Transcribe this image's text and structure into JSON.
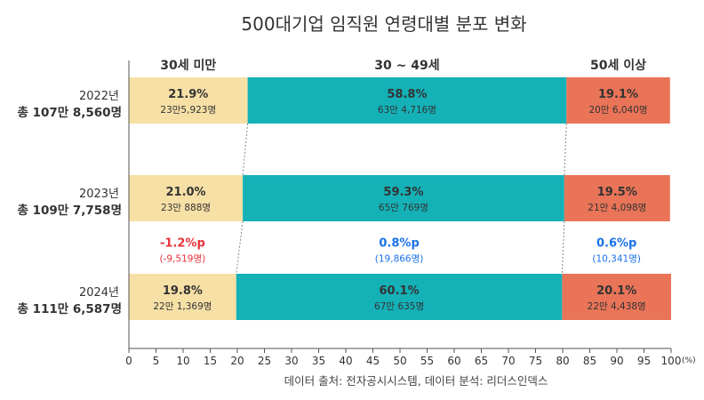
{
  "chart_data": {
    "type": "bar",
    "stacked": true,
    "orientation": "horizontal",
    "title": "500대기업 임직원 연령대별 분포 변화",
    "source": "데이터 출처: 전자공시시스템, 데이터 분석: 리더스인덱스",
    "x_unit": "(%)",
    "xlim": [
      0,
      100
    ],
    "x_ticks": [
      0,
      5,
      10,
      15,
      20,
      25,
      30,
      35,
      40,
      45,
      50,
      55,
      60,
      65,
      70,
      75,
      80,
      85,
      90,
      95,
      100
    ],
    "colors": {
      "under30": "#f7e0a6",
      "age30to49": "#14b1b7",
      "over50": "#e97458",
      "decrease": "#e8323c",
      "increase": "#1a73e8"
    },
    "series": [
      {
        "name": "30세 미만",
        "values": [
          21.9,
          21.0,
          19.8
        ],
        "counts": [
          "23만5,923명",
          "23만 888명",
          "22만 1,369명"
        ]
      },
      {
        "name": "30 ~ 49세",
        "values": [
          58.8,
          59.3,
          60.1
        ],
        "counts": [
          "63만 4,716명",
          "65만 769명",
          "67만 635명"
        ]
      },
      {
        "name": "50세 이상",
        "values": [
          19.1,
          19.5,
          20.1
        ],
        "counts": [
          "20만 6,040명",
          "21만 4,098명",
          "22만 4,438명"
        ]
      }
    ],
    "rows": [
      {
        "year": "2022년",
        "total": "총 107만 8,560명"
      },
      {
        "year": "2023년",
        "total": "총 109만 7,758명"
      },
      {
        "year": "2024년",
        "total": "총 111만 6,587명"
      }
    ],
    "changes": [
      {
        "pct": "-1.2%p",
        "count": "(-9,519명)",
        "direction": "down"
      },
      {
        "pct": "0.8%p",
        "count": "(19,866명)",
        "direction": "up"
      },
      {
        "pct": "0.6%p",
        "count": "(10,341명)",
        "direction": "up"
      }
    ]
  }
}
